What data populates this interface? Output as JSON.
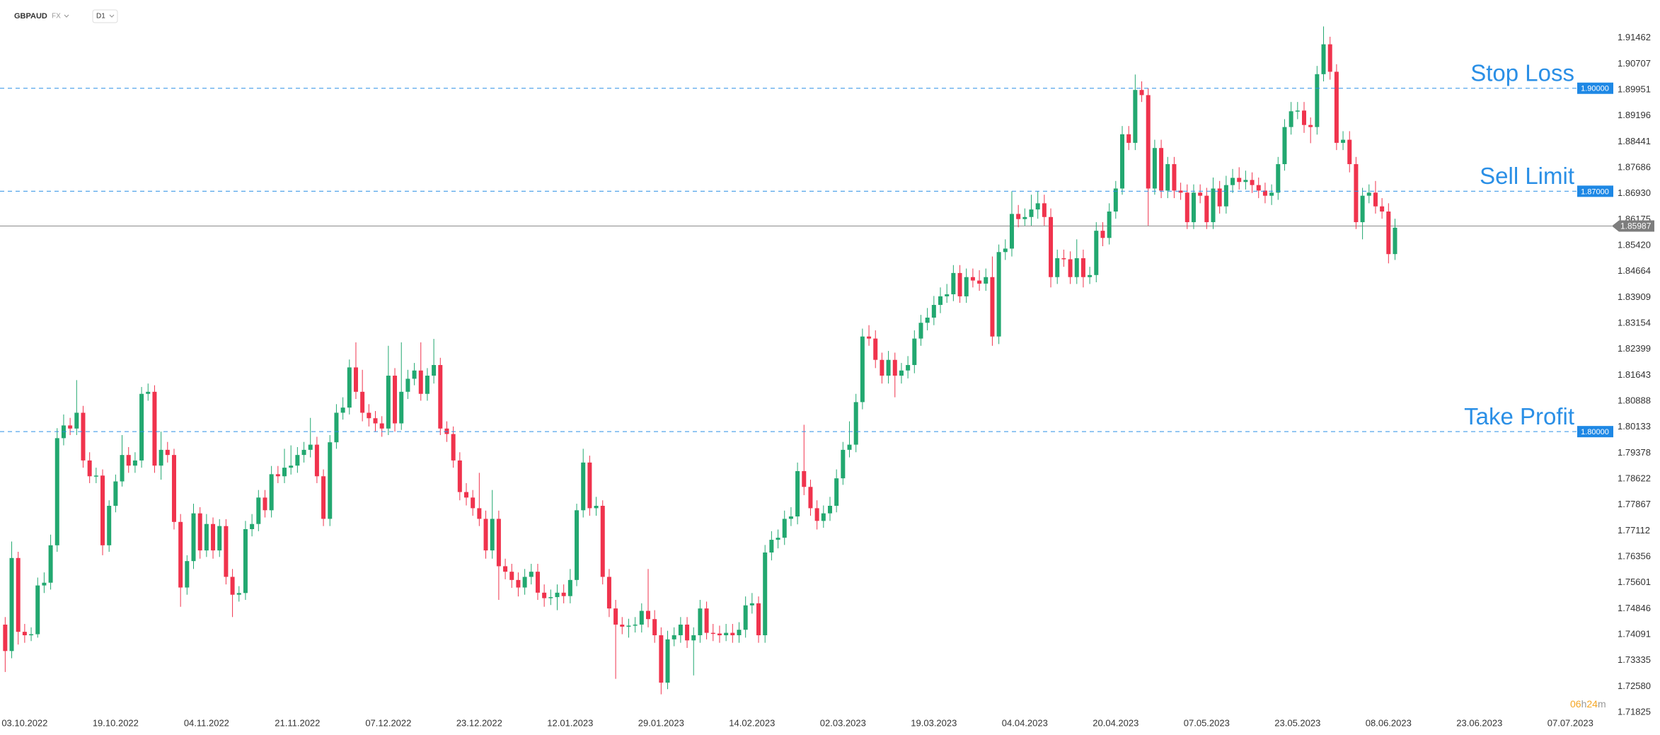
{
  "header": {
    "symbol": "GBPAUD",
    "market": "FX",
    "timeframe": "D1"
  },
  "chart_data": {
    "type": "candlestick",
    "up_color": "#22a870",
    "down_color": "#f0334d",
    "open": [
      1.7438,
      1.7361,
      1.7632,
      1.7417,
      1.7407,
      1.741,
      1.7552,
      1.756,
      1.7669,
      1.7981,
      1.8018,
      1.8009,
      1.8055,
      1.7916,
      1.787,
      1.7872,
      1.7669,
      1.7784,
      1.7855,
      1.7932,
      1.7901,
      1.7916,
      1.811,
      1.8116,
      1.7901,
      1.7947,
      1.7932,
      1.7737,
      1.7546,
      1.7623,
      1.7762,
      1.7654,
      1.7731,
      1.7654,
      1.7725,
      1.7577,
      1.7525,
      1.753,
      1.7716,
      1.7731,
      1.7808,
      1.7771,
      1.7876,
      1.787,
      1.7895,
      1.7901,
      1.7932,
      1.7947,
      1.7962,
      1.787,
      1.7746,
      1.7969,
      1.8055,
      1.807,
      1.8187,
      1.8116,
      1.8055,
      1.8039,
      1.8024,
      1.8009,
      1.8163,
      1.8024,
      1.8116,
      1.8154,
      1.8178,
      1.811,
      1.8163,
      1.8194,
      1.8009,
      1.7993,
      1.7916,
      1.7824,
      1.7808,
      1.7777,
      1.7746,
      1.7654,
      1.7746,
      1.7608,
      1.7592,
      1.7568,
      1.7546,
      1.7577,
      1.7592,
      1.7531,
      1.7515,
      1.7518,
      1.7531,
      1.7521,
      1.7568,
      1.7771,
      1.791,
      1.7777,
      1.7784,
      1.7577,
      1.7485,
      1.7438,
      1.7432,
      1.7435,
      1.7438,
      1.7478,
      1.7454,
      1.7407,
      1.7269,
      1.7395,
      1.7407,
      1.7438,
      1.7392,
      1.7407,
      1.7485,
      1.7414,
      1.7412,
      1.7407,
      1.7414,
      1.7407,
      1.7423,
      1.7494,
      1.75,
      1.7407,
      1.7648,
      1.7685,
      1.7691,
      1.7746,
      1.7753,
      1.7885,
      1.7839,
      1.7777,
      1.774,
      1.7762,
      1.7784,
      1.7864,
      1.7947,
      1.7962,
      1.8086,
      1.8277,
      1.8271,
      1.8209,
      1.8163,
      1.8209,
      1.8163,
      1.8178,
      1.8194,
      1.8271,
      1.8317,
      1.8332,
      1.8369,
      1.8394,
      1.84,
      1.8462,
      1.8394,
      1.845,
      1.844,
      1.8431,
      1.845,
      1.8277,
      1.8523,
      1.8533,
      1.8634,
      1.8619,
      1.8625,
      1.8647,
      1.8665,
      1.8625,
      1.845,
      1.8505,
      1.8502,
      1.845,
      1.8505,
      1.845,
      1.8456,
      1.8585,
      1.8564,
      1.8641,
      1.8708,
      1.8866,
      1.8841,
      1.8995,
      1.898,
      1.8708,
      1.8826,
      1.8702,
      1.8779,
      1.8702,
      1.8696,
      1.861,
      1.8696,
      1.8687,
      1.861,
      1.8708,
      1.8656,
      1.8718,
      1.8739,
      1.8727,
      1.8733,
      1.8718,
      1.8702,
      1.8687,
      1.8696,
      1.8779,
      1.8887,
      1.8933,
      1.8935,
      1.8893,
      1.8887,
      1.9041,
      1.9128,
      1.9048,
      1.8841,
      1.885,
      1.8779,
      1.861,
      1.8687,
      1.8696,
      1.8656,
      1.8641,
      1.8517
    ],
    "high": [
      1.746,
      1.768,
      1.765,
      1.744,
      1.743,
      1.7575,
      1.759,
      1.77,
      1.801,
      1.805,
      1.804,
      1.815,
      1.8075,
      1.794,
      1.7895,
      1.789,
      1.78,
      1.7875,
      1.799,
      1.7955,
      1.794,
      1.813,
      1.814,
      1.8135,
      1.8,
      1.797,
      1.795,
      1.776,
      1.764,
      1.779,
      1.778,
      1.776,
      1.775,
      1.7745,
      1.7745,
      1.76,
      1.755,
      1.774,
      1.776,
      1.783,
      1.783,
      1.79,
      1.79,
      1.795,
      1.796,
      1.7955,
      1.797,
      1.804,
      1.7985,
      1.789,
      1.799,
      1.808,
      1.81,
      1.821,
      1.826,
      1.818,
      1.808,
      1.806,
      1.8045,
      1.825,
      1.8185,
      1.826,
      1.818,
      1.82,
      1.826,
      1.8185,
      1.827,
      1.8215,
      1.803,
      1.8015,
      1.794,
      1.785,
      1.783,
      1.788,
      1.777,
      1.783,
      1.777,
      1.763,
      1.7615,
      1.759,
      1.76,
      1.7615,
      1.7615,
      1.7555,
      1.754,
      1.7555,
      1.7555,
      1.76,
      1.779,
      1.795,
      1.793,
      1.781,
      1.78,
      1.76,
      1.751,
      1.746,
      1.7455,
      1.746,
      1.75,
      1.76,
      1.748,
      1.743,
      1.742,
      1.743,
      1.746,
      1.746,
      1.743,
      1.751,
      1.7505,
      1.744,
      1.7435,
      1.744,
      1.744,
      1.7445,
      1.752,
      1.753,
      1.752,
      1.767,
      1.771,
      1.7715,
      1.777,
      1.778,
      1.791,
      1.802,
      1.786,
      1.78,
      1.7785,
      1.781,
      1.789,
      1.797,
      1.803,
      1.811,
      1.83,
      1.831,
      1.8295,
      1.823,
      1.8235,
      1.823,
      1.82,
      1.822,
      1.8295,
      1.834,
      1.836,
      1.8395,
      1.842,
      1.843,
      1.8485,
      1.8485,
      1.8475,
      1.8475,
      1.847,
      1.8475,
      1.851,
      1.8545,
      1.856,
      1.87,
      1.866,
      1.865,
      1.869,
      1.87,
      1.869,
      1.865,
      1.853,
      1.853,
      1.8525,
      1.856,
      1.853,
      1.848,
      1.861,
      1.861,
      1.8665,
      1.873,
      1.889,
      1.889,
      1.904,
      1.902,
      1.9,
      1.885,
      1.885,
      1.88,
      1.88,
      1.8725,
      1.872,
      1.872,
      1.872,
      1.871,
      1.874,
      1.873,
      1.8745,
      1.8765,
      1.877,
      1.876,
      1.8755,
      1.874,
      1.8725,
      1.872,
      1.88,
      1.891,
      1.896,
      1.896,
      1.896,
      1.8915,
      1.9065,
      1.918,
      1.915,
      1.907,
      1.8875,
      1.8875,
      1.88,
      1.871,
      1.872,
      1.873,
      1.868,
      1.8665,
      1.862
    ],
    "low": [
      1.73,
      1.734,
      1.738,
      1.7385,
      1.739,
      1.74,
      1.753,
      1.754,
      1.765,
      1.796,
      1.799,
      1.799,
      1.7895,
      1.785,
      1.785,
      1.764,
      1.765,
      1.7765,
      1.784,
      1.788,
      1.788,
      1.7895,
      1.809,
      1.788,
      1.786,
      1.791,
      1.7715,
      1.749,
      1.7525,
      1.76,
      1.763,
      1.7635,
      1.763,
      1.7635,
      1.7555,
      1.746,
      1.7505,
      1.751,
      1.7695,
      1.771,
      1.775,
      1.775,
      1.785,
      1.785,
      1.7875,
      1.788,
      1.791,
      1.7925,
      1.785,
      1.7725,
      1.7725,
      1.795,
      1.8035,
      1.805,
      1.8095,
      1.803,
      1.8015,
      1.8,
      1.7985,
      1.799,
      1.8,
      1.8005,
      1.8095,
      1.8135,
      1.809,
      1.809,
      1.814,
      1.799,
      1.797,
      1.7895,
      1.78,
      1.7785,
      1.7755,
      1.7725,
      1.763,
      1.763,
      1.751,
      1.757,
      1.7545,
      1.752,
      1.7525,
      1.7555,
      1.751,
      1.749,
      1.7495,
      1.748,
      1.75,
      1.75,
      1.755,
      1.775,
      1.7755,
      1.7755,
      1.7555,
      1.746,
      1.728,
      1.741,
      1.74,
      1.7415,
      1.7415,
      1.743,
      1.7385,
      1.7235,
      1.725,
      1.7375,
      1.7385,
      1.737,
      1.729,
      1.7385,
      1.7395,
      1.739,
      1.7385,
      1.739,
      1.7385,
      1.7385,
      1.74,
      1.747,
      1.7385,
      1.7385,
      1.7625,
      1.766,
      1.767,
      1.7725,
      1.773,
      1.7815,
      1.7755,
      1.7715,
      1.772,
      1.774,
      1.7765,
      1.7845,
      1.7925,
      1.794,
      1.8065,
      1.825,
      1.8185,
      1.814,
      1.814,
      1.81,
      1.814,
      1.8155,
      1.817,
      1.825,
      1.8295,
      1.831,
      1.8345,
      1.8375,
      1.838,
      1.8375,
      1.8375,
      1.842,
      1.841,
      1.841,
      1.825,
      1.8255,
      1.85,
      1.851,
      1.8595,
      1.86,
      1.86,
      1.862,
      1.86,
      1.842,
      1.843,
      1.848,
      1.843,
      1.843,
      1.842,
      1.843,
      1.8435,
      1.854,
      1.8545,
      1.862,
      1.869,
      1.882,
      1.882,
      1.896,
      1.86,
      1.869,
      1.868,
      1.868,
      1.868,
      1.8675,
      1.859,
      1.859,
      1.8665,
      1.859,
      1.859,
      1.8635,
      1.8635,
      1.8695,
      1.8705,
      1.8705,
      1.8695,
      1.868,
      1.8665,
      1.866,
      1.8675,
      1.876,
      1.8865,
      1.891,
      1.887,
      1.884,
      1.8865,
      1.902,
      1.9025,
      1.882,
      1.882,
      1.8755,
      1.859,
      1.856,
      1.8665,
      1.8635,
      1.862,
      1.849,
      1.85
    ],
    "close": [
      1.7361,
      1.7632,
      1.7417,
      1.7407,
      1.741,
      1.7552,
      1.756,
      1.7669,
      1.7981,
      1.8018,
      1.8009,
      1.8055,
      1.7916,
      1.787,
      1.7872,
      1.7669,
      1.7784,
      1.7855,
      1.7932,
      1.7901,
      1.7916,
      1.811,
      1.8116,
      1.7901,
      1.7947,
      1.7932,
      1.7737,
      1.7546,
      1.7623,
      1.7762,
      1.7654,
      1.7731,
      1.7654,
      1.7725,
      1.7577,
      1.7525,
      1.753,
      1.7716,
      1.7731,
      1.7808,
      1.7771,
      1.7876,
      1.787,
      1.7895,
      1.7901,
      1.7932,
      1.7947,
      1.7962,
      1.787,
      1.7746,
      1.7969,
      1.8055,
      1.807,
      1.8187,
      1.8116,
      1.8055,
      1.8039,
      1.8024,
      1.8009,
      1.8163,
      1.8024,
      1.8116,
      1.8154,
      1.8178,
      1.811,
      1.8163,
      1.8194,
      1.8009,
      1.7993,
      1.7916,
      1.7824,
      1.7808,
      1.7777,
      1.7746,
      1.7654,
      1.7746,
      1.7608,
      1.7592,
      1.7568,
      1.7546,
      1.7577,
      1.7592,
      1.7531,
      1.7515,
      1.7518,
      1.7531,
      1.7521,
      1.7568,
      1.7771,
      1.791,
      1.7777,
      1.7784,
      1.7577,
      1.7485,
      1.7438,
      1.7432,
      1.7435,
      1.7438,
      1.7478,
      1.7454,
      1.7407,
      1.7269,
      1.7395,
      1.7407,
      1.7438,
      1.7392,
      1.7407,
      1.7485,
      1.7414,
      1.7412,
      1.7407,
      1.7414,
      1.7407,
      1.7423,
      1.7494,
      1.75,
      1.7407,
      1.7648,
      1.7685,
      1.7691,
      1.7746,
      1.7753,
      1.7885,
      1.7839,
      1.7777,
      1.774,
      1.7762,
      1.7784,
      1.7864,
      1.7947,
      1.7962,
      1.8086,
      1.8277,
      1.8271,
      1.8209,
      1.8163,
      1.8209,
      1.8163,
      1.8178,
      1.8194,
      1.8271,
      1.8317,
      1.8332,
      1.8369,
      1.8394,
      1.84,
      1.8462,
      1.8394,
      1.845,
      1.844,
      1.8431,
      1.845,
      1.8277,
      1.8523,
      1.8533,
      1.8634,
      1.8619,
      1.8625,
      1.8647,
      1.8665,
      1.8625,
      1.845,
      1.8505,
      1.8502,
      1.845,
      1.8505,
      1.845,
      1.8456,
      1.8585,
      1.8564,
      1.8641,
      1.8708,
      1.8866,
      1.8841,
      1.8995,
      1.898,
      1.8708,
      1.8826,
      1.8702,
      1.8779,
      1.8702,
      1.8696,
      1.861,
      1.8696,
      1.8687,
      1.861,
      1.8708,
      1.8656,
      1.8718,
      1.8739,
      1.8727,
      1.8733,
      1.8718,
      1.8702,
      1.8687,
      1.8696,
      1.8779,
      1.8887,
      1.8933,
      1.8935,
      1.8893,
      1.8887,
      1.9041,
      1.9128,
      1.9048,
      1.8841,
      1.885,
      1.8779,
      1.861,
      1.8687,
      1.8696,
      1.8656,
      1.8641,
      1.8517,
      1.8594
    ],
    "xlim": [
      -0.8,
      243.8
    ],
    "xticks": [
      {
        "value": 3,
        "label": "03.10.2022"
      },
      {
        "value": 17,
        "label": "19.10.2022"
      },
      {
        "value": 31,
        "label": "04.11.2022"
      },
      {
        "value": 45,
        "label": "21.11.2022"
      },
      {
        "value": 59,
        "label": "07.12.2022"
      },
      {
        "value": 73,
        "label": "23.12.2022"
      },
      {
        "value": 87,
        "label": "12.01.2023"
      },
      {
        "value": 101,
        "label": "29.01.2023"
      },
      {
        "value": 115,
        "label": "14.02.2023"
      },
      {
        "value": 129,
        "label": "02.03.2023"
      },
      {
        "value": 143,
        "label": "19.03.2023"
      },
      {
        "value": 157,
        "label": "04.04.2023"
      },
      {
        "value": 171,
        "label": "20.04.2023"
      },
      {
        "value": 185,
        "label": "07.05.2023"
      },
      {
        "value": 199,
        "label": "23.05.2023"
      },
      {
        "value": 213,
        "label": "08.06.2023"
      },
      {
        "value": 227,
        "label": "23.06.2023"
      },
      {
        "value": 241,
        "label": "07.07.2023"
      }
    ],
    "ylim": [
      1.7168,
      1.9257
    ],
    "yticks": [
      1.91462,
      1.90707,
      1.89951,
      1.89196,
      1.88441,
      1.87686,
      {
        "value": 1.8693,
        "label": "1.86930"
      },
      1.86175,
      {
        "value": 1.8542,
        "label": "1.85420"
      },
      1.84664,
      1.83909,
      1.83154,
      1.82399,
      1.81643,
      1.80888,
      1.80133,
      1.79378,
      1.78622,
      1.77867,
      1.77112,
      1.76356,
      1.75601,
      1.74846,
      1.74091,
      1.73335,
      {
        "value": 1.7258,
        "label": "1.72580"
      },
      1.71825
    ],
    "level_color": "#2a8fe6",
    "levels": [
      {
        "name": "Stop Loss",
        "value": 1.9,
        "label": "1.90000"
      },
      {
        "name": "Sell Limit",
        "value": 1.87,
        "label": "1.87000"
      },
      {
        "name": "Take Profit",
        "value": 1.8,
        "label": "1.80000"
      }
    ],
    "current_price": {
      "value": 1.85987,
      "label": "1.85987"
    },
    "countdown": [
      "06",
      "h",
      "24",
      "m"
    ]
  }
}
